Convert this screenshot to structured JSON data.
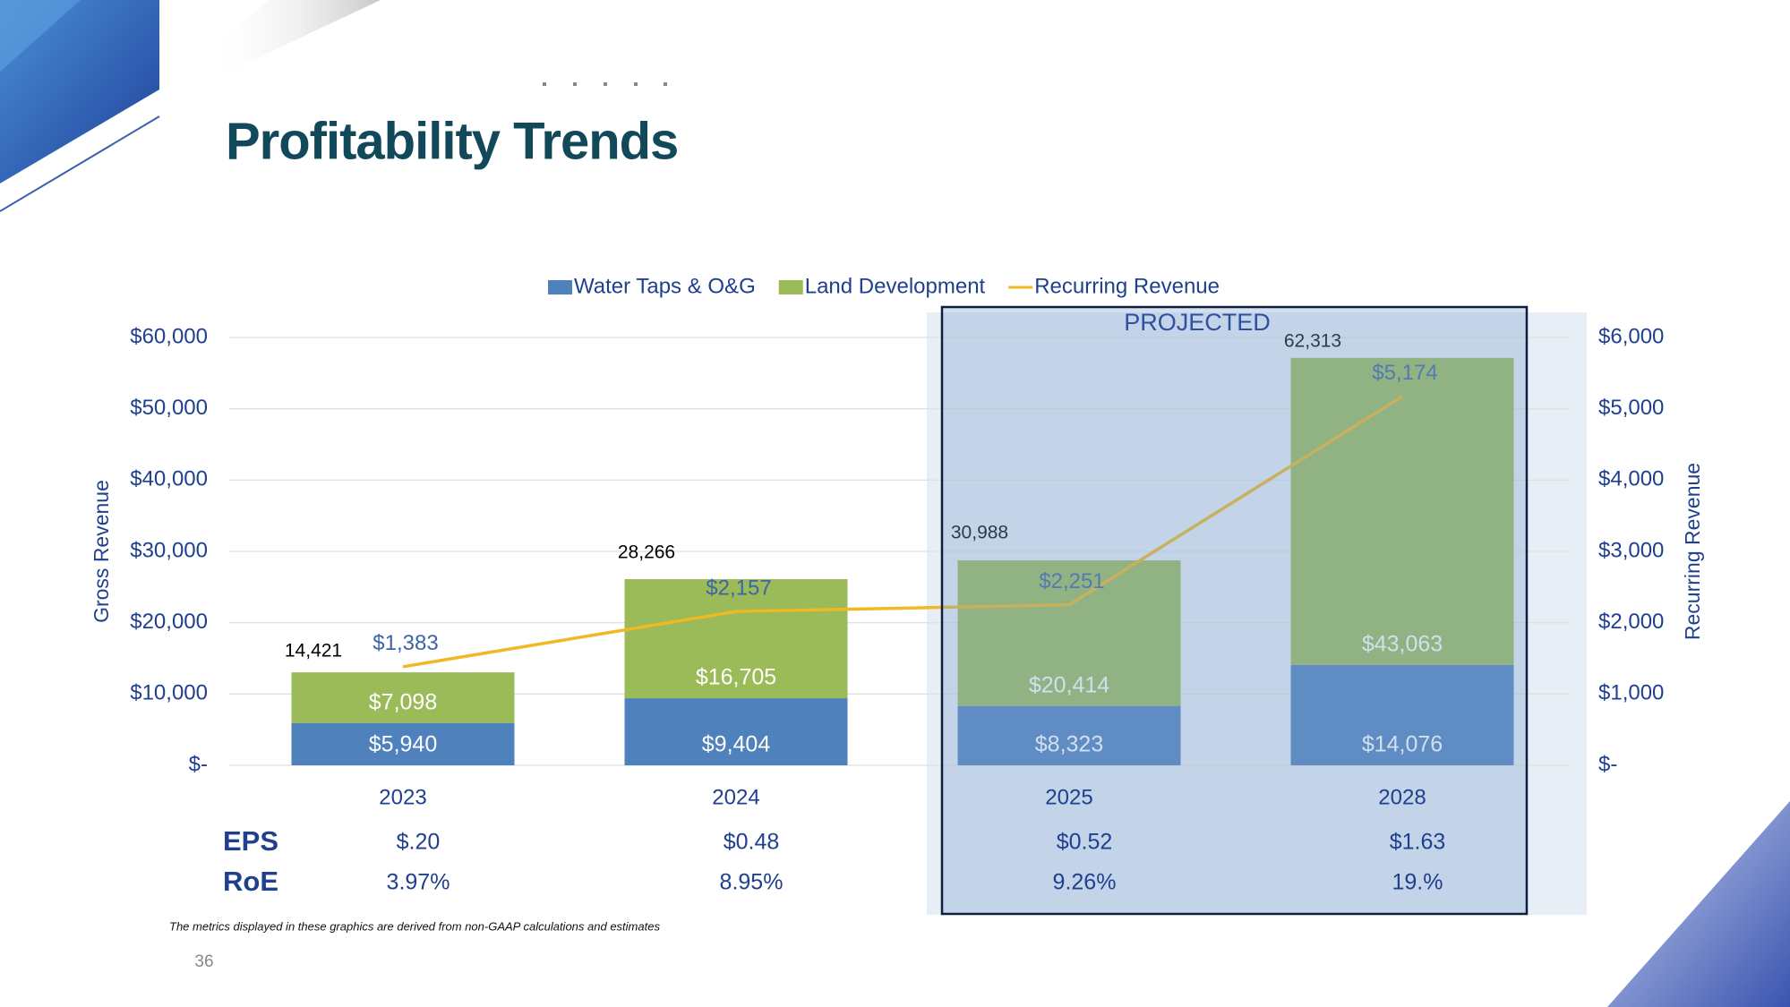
{
  "chart_data": {
    "type": "bar",
    "stacked": true,
    "title": "Profitability Trends",
    "annotation": "PROJECTED",
    "categories": [
      "2023",
      "2024",
      "2025",
      "2028"
    ],
    "series": [
      {
        "name": "Water Taps & O&G",
        "color": "#4f81bd",
        "values": [
          5940,
          9404,
          8323,
          14076
        ],
        "value_labels": [
          "$5,940",
          "$9,404",
          "$8,323",
          "$14,076"
        ]
      },
      {
        "name": "Land Development",
        "color": "#9bbb59",
        "values": [
          7098,
          16705,
          20414,
          43063
        ],
        "value_labels": [
          "$7,098",
          "$16,705",
          "$20,414",
          "$43,063"
        ]
      },
      {
        "name": "Recurring Revenue",
        "type": "line",
        "axis": "y2",
        "color": "#f0b823",
        "values": [
          1383,
          2157,
          2251,
          5174
        ],
        "value_labels": [
          "$1,383",
          "$2,157",
          "$2,251",
          "$5,174"
        ]
      }
    ],
    "totals": [
      {
        "value": 14421,
        "label": "14,421"
      },
      {
        "value": 28266,
        "label": "28,266"
      },
      {
        "value": 30988,
        "label": "30,988"
      },
      {
        "value": 62313,
        "label": "62,313"
      }
    ],
    "ylabel": "Gross Revenue",
    "y2label": "Recurring Revenue",
    "ylim": [
      0,
      60000
    ],
    "yticks": [
      {
        "value": 0,
        "label": "$-"
      },
      {
        "value": 10000,
        "label": "$10,000"
      },
      {
        "value": 20000,
        "label": "$20,000"
      },
      {
        "value": 30000,
        "label": "$30,000"
      },
      {
        "value": 40000,
        "label": "$40,000"
      },
      {
        "value": 50000,
        "label": "$50,000"
      },
      {
        "value": 60000,
        "label": "$60,000"
      }
    ],
    "y2lim": [
      0,
      6000
    ],
    "y2ticks": [
      {
        "value": 0,
        "label": "$-"
      },
      {
        "value": 1000,
        "label": "$1,000"
      },
      {
        "value": 2000,
        "label": "$2,000"
      },
      {
        "value": 3000,
        "label": "$3,000"
      },
      {
        "value": 4000,
        "label": "$4,000"
      },
      {
        "value": 5000,
        "label": "$5,000"
      },
      {
        "value": 6000,
        "label": "$6,000"
      }
    ],
    "grid": true,
    "legend": "top",
    "metrics": [
      {
        "label": "EPS",
        "values": [
          "$.20",
          "$0.48",
          "$0.52",
          "$1.63"
        ]
      },
      {
        "label": "RoE",
        "values": [
          "3.97%",
          "8.95%",
          "9.26%",
          "19.%"
        ]
      }
    ],
    "footnote": "The metrics displayed in these graphics are derived from non-GAAP calculations and estimates",
    "page_number": "36"
  }
}
